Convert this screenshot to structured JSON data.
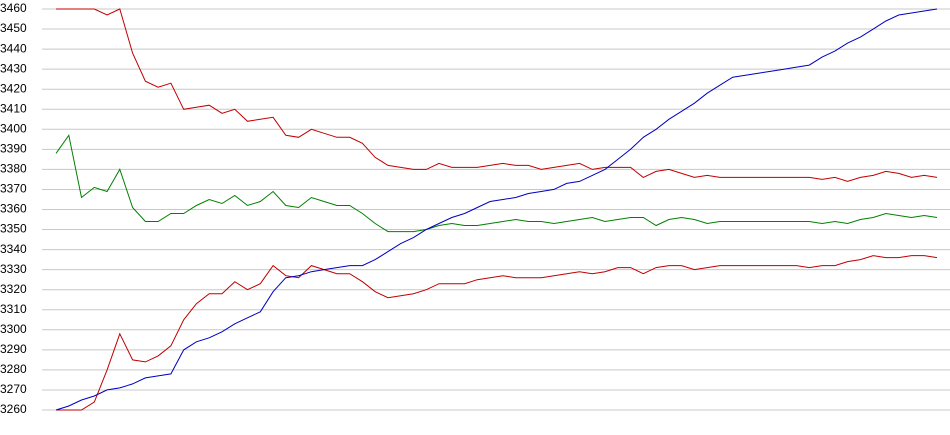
{
  "chart_data": {
    "type": "line",
    "categories": [
      null,
      null,
      null,
      null,
      null,
      null,
      null,
      null,
      null,
      null,
      null,
      null,
      null,
      null,
      null,
      null,
      null,
      null,
      null,
      null,
      null,
      null,
      null,
      null,
      null,
      null,
      null,
      null,
      null,
      null,
      null,
      null,
      null,
      null,
      null,
      null,
      null,
      null,
      null,
      null,
      null,
      null,
      null,
      null,
      null,
      null,
      null,
      null,
      null,
      null,
      null,
      null,
      null,
      null,
      null,
      null,
      null,
      null,
      null,
      null,
      null,
      null,
      null,
      null,
      null,
      null,
      null,
      null,
      null,
      null
    ],
    "series": [
      {
        "color": "#c00000",
        "values": [
          3460,
          3460,
          3460,
          3460,
          3457,
          3460,
          3438,
          3424,
          3421,
          3423,
          3410,
          3411,
          3412,
          3408,
          3410,
          3404,
          3405,
          3406,
          3397,
          3396,
          3400,
          3398,
          3396,
          3396,
          3393,
          3386,
          3382,
          3381,
          3380,
          3380,
          3383,
          3381,
          3381,
          3381,
          3382,
          3383,
          3382,
          3382,
          3380,
          3381,
          3382,
          3383,
          3380,
          3381,
          3381,
          3381,
          3376,
          3379,
          3380,
          3378,
          3376,
          3377,
          3376,
          3376,
          3376,
          3376,
          3376,
          3376,
          3376,
          3376,
          3375,
          3376,
          3374,
          3376,
          3377,
          3379,
          3378,
          3376,
          3377,
          3376
        ]
      },
      {
        "color": "#c00000",
        "values": [
          3260,
          3260,
          3260,
          3264,
          3280,
          3298,
          3285,
          3284,
          3287,
          3292,
          3305,
          3313,
          3318,
          3318,
          3324,
          3320,
          3323,
          3332,
          3327,
          3326,
          3332,
          3330,
          3328,
          3328,
          3324,
          3319,
          3316,
          3317,
          3318,
          3320,
          3323,
          3323,
          3323,
          3325,
          3326,
          3327,
          3326,
          3326,
          3326,
          3327,
          3328,
          3329,
          3328,
          3329,
          3331,
          3331,
          3328,
          3331,
          3332,
          3332,
          3330,
          3331,
          3332,
          3332,
          3332,
          3332,
          3332,
          3332,
          3332,
          3331,
          3332,
          3332,
          3334,
          3335,
          3337,
          3336,
          3336,
          3337,
          3337,
          3336
        ]
      },
      {
        "color": "#008000",
        "values": [
          3388,
          3397,
          3366,
          3371,
          3369,
          3380,
          3361,
          3354,
          3354,
          3358,
          3358,
          3362,
          3365,
          3363,
          3367,
          3362,
          3364,
          3369,
          3362,
          3361,
          3366,
          3364,
          3362,
          3362,
          3358,
          3353,
          3349,
          3349,
          3349,
          3350,
          3352,
          3353,
          3352,
          3352,
          3353,
          3354,
          3355,
          3354,
          3354,
          3353,
          3354,
          3355,
          3356,
          3354,
          3355,
          3356,
          3356,
          3352,
          3355,
          3356,
          3355,
          3353,
          3354,
          3354,
          3354,
          3354,
          3354,
          3354,
          3354,
          3354,
          3353,
          3354,
          3353,
          3355,
          3356,
          3358,
          3357,
          3356,
          3357,
          3356
        ]
      },
      {
        "color": "#0000c0",
        "values": [
          3260,
          3262,
          3265,
          3267,
          3270,
          3271,
          3273,
          3276,
          3277,
          3278,
          3290,
          3294,
          3296,
          3299,
          3303,
          3306,
          3309,
          3319,
          3326,
          3327,
          3329,
          3330,
          3331,
          3332,
          3332,
          3335,
          3339,
          3343,
          3346,
          3350,
          3353,
          3356,
          3358,
          3361,
          3364,
          3365,
          3366,
          3368,
          3369,
          3370,
          3373,
          3374,
          3377,
          3380,
          3385,
          3390,
          3396,
          3400,
          3405,
          3409,
          3413,
          3418,
          3422,
          3426,
          3427,
          3428,
          3429,
          3430,
          3431,
          3432,
          3436,
          3439,
          3443,
          3446,
          3450,
          3454,
          3457,
          3458,
          3459,
          3460
        ]
      }
    ],
    "ylim": [
      3260,
      3460
    ],
    "yticks": [
      3260,
      3270,
      3280,
      3290,
      3300,
      3310,
      3320,
      3330,
      3340,
      3350,
      3360,
      3370,
      3380,
      3390,
      3400,
      3410,
      3420,
      3430,
      3440,
      3450,
      3460
    ],
    "grid": true
  }
}
